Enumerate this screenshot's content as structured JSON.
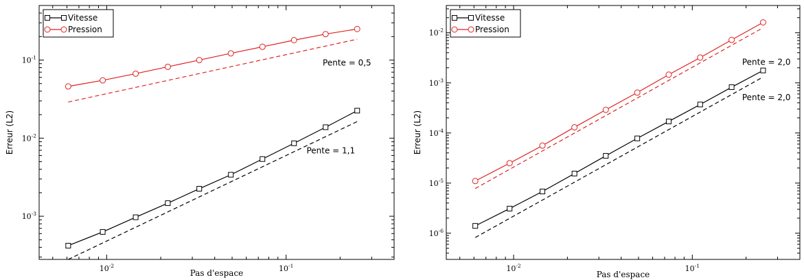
{
  "chart_data": [
    {
      "type": "line",
      "x_scale": "log",
      "y_scale": "log",
      "xlabel": "Pas d'espace",
      "ylabel": "Erreur (L2)",
      "xlim": [
        0.0042,
        0.4
      ],
      "ylim": [
        0.00028,
        0.5
      ],
      "x_ticks": [
        0.01,
        0.1
      ],
      "y_ticks": [
        0.001,
        0.01,
        0.1
      ],
      "legend_position": "top-left",
      "series": [
        {
          "name": "Vitesse",
          "color": "#000000",
          "marker": "square",
          "x": [
            0.0061,
            0.0095,
            0.0145,
            0.0219,
            0.0328,
            0.0492,
            0.0738,
            0.1107,
            0.166,
            0.249
          ],
          "y": [
            0.00042,
            0.00063,
            0.00097,
            0.00147,
            0.00225,
            0.0034,
            0.0054,
            0.0086,
            0.0138,
            0.0225
          ]
        },
        {
          "name": "Pression",
          "color": "#e02020",
          "marker": "circle",
          "x": [
            0.0061,
            0.0095,
            0.0145,
            0.0219,
            0.0328,
            0.0492,
            0.0738,
            0.1107,
            0.166,
            0.249
          ],
          "y": [
            0.046,
            0.055,
            0.067,
            0.082,
            0.1,
            0.122,
            0.148,
            0.18,
            0.215,
            0.25
          ]
        }
      ],
      "reference_lines": [
        {
          "color": "#e02020",
          "x": [
            0.0061,
            0.249
          ],
          "y": [
            0.029,
            0.185
          ],
          "label": "Pente = 0,5",
          "label_x": 0.16,
          "label_y": 0.085
        },
        {
          "color": "#000000",
          "x": [
            0.0061,
            0.249
          ],
          "y": [
            0.00028,
            0.0163
          ],
          "label": "Pente = 1,1",
          "label_x": 0.13,
          "label_y": 0.0064
        }
      ]
    },
    {
      "type": "line",
      "x_scale": "log",
      "y_scale": "log",
      "xlabel": "Pas d'espace",
      "ylabel": "Erreur (L2)",
      "xlim": [
        0.0042,
        0.4
      ],
      "ylim": [
        3e-07,
        0.035
      ],
      "x_ticks": [
        0.01,
        0.1
      ],
      "y_ticks": [
        1e-06,
        1e-05,
        0.0001,
        0.001,
        0.01
      ],
      "legend_position": "top-left",
      "series": [
        {
          "name": "Vitesse",
          "color": "#000000",
          "marker": "square",
          "x": [
            0.0061,
            0.0095,
            0.0145,
            0.0219,
            0.0328,
            0.0492,
            0.0738,
            0.1107,
            0.166,
            0.249
          ],
          "y": [
            1.4e-06,
            3.1e-06,
            6.8e-06,
            1.55e-05,
            3.5e-05,
            7.8e-05,
            0.00017,
            0.00037,
            0.00082,
            0.00177
          ]
        },
        {
          "name": "Pression",
          "color": "#e02020",
          "marker": "circle",
          "x": [
            0.0061,
            0.0095,
            0.0145,
            0.0219,
            0.0328,
            0.0492,
            0.0738,
            0.1107,
            0.166,
            0.249
          ],
          "y": [
            1.1e-05,
            2.5e-05,
            5.6e-05,
            0.00013,
            0.00029,
            0.00064,
            0.00146,
            0.0032,
            0.0072,
            0.0161
          ]
        }
      ],
      "reference_lines": [
        {
          "color": "#e02020",
          "x": [
            0.0061,
            0.249
          ],
          "y": [
            7.8e-06,
            0.0126
          ],
          "label": "Pente = 2,0",
          "label_x": 0.19,
          "label_y": 0.0023
        },
        {
          "color": "#000000",
          "x": [
            0.0061,
            0.249
          ],
          "y": [
            8.2e-07,
            0.00131
          ],
          "label": "Pente = 2,0",
          "label_x": 0.19,
          "label_y": 0.00045
        }
      ]
    }
  ]
}
